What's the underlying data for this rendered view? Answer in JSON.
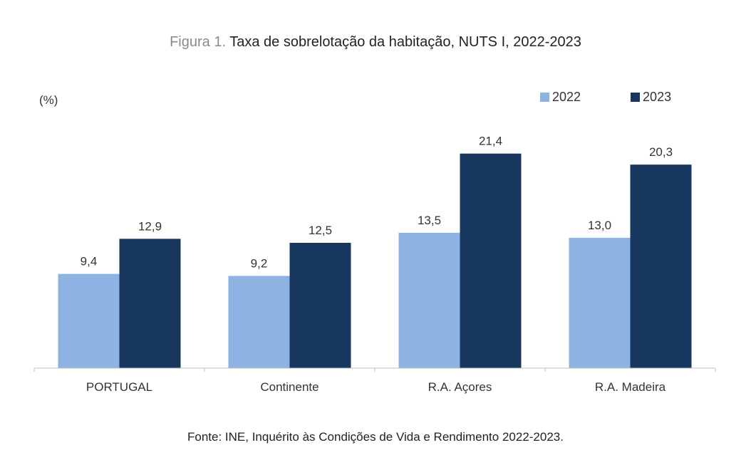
{
  "title_prefix": "Figura 1.",
  "title_main": "Taxa de sobrelotação da habitação, NUTS I, 2022-2023",
  "unit_label": "(%)",
  "source": "Fonte: INE, Inquérito às Condições de Vida e Rendimento 2022-2023.",
  "colors": {
    "series_2022": "#8db3e2",
    "series_2023": "#17375e",
    "axis": "#bfbfbf"
  },
  "chart_data": {
    "type": "bar",
    "title": "Figura 1. Taxa de sobrelotação da habitação, NUTS I, 2022-2023",
    "ylabel": "(%)",
    "categories": [
      "PORTUGAL",
      "Continente",
      "R.A. Açores",
      "R.A. Madeira"
    ],
    "series": [
      {
        "name": "2022",
        "values": [
          9.4,
          9.2,
          13.5,
          13.0
        ],
        "labels": [
          "9,4",
          "9,2",
          "13,5",
          "13,0"
        ]
      },
      {
        "name": "2023",
        "values": [
          12.9,
          12.5,
          21.4,
          20.3
        ],
        "labels": [
          "12,9",
          "12,5",
          "21,4",
          "20,3"
        ]
      }
    ],
    "ylim": [
      0,
      25
    ],
    "grid": false,
    "legend_position": "top-right"
  }
}
